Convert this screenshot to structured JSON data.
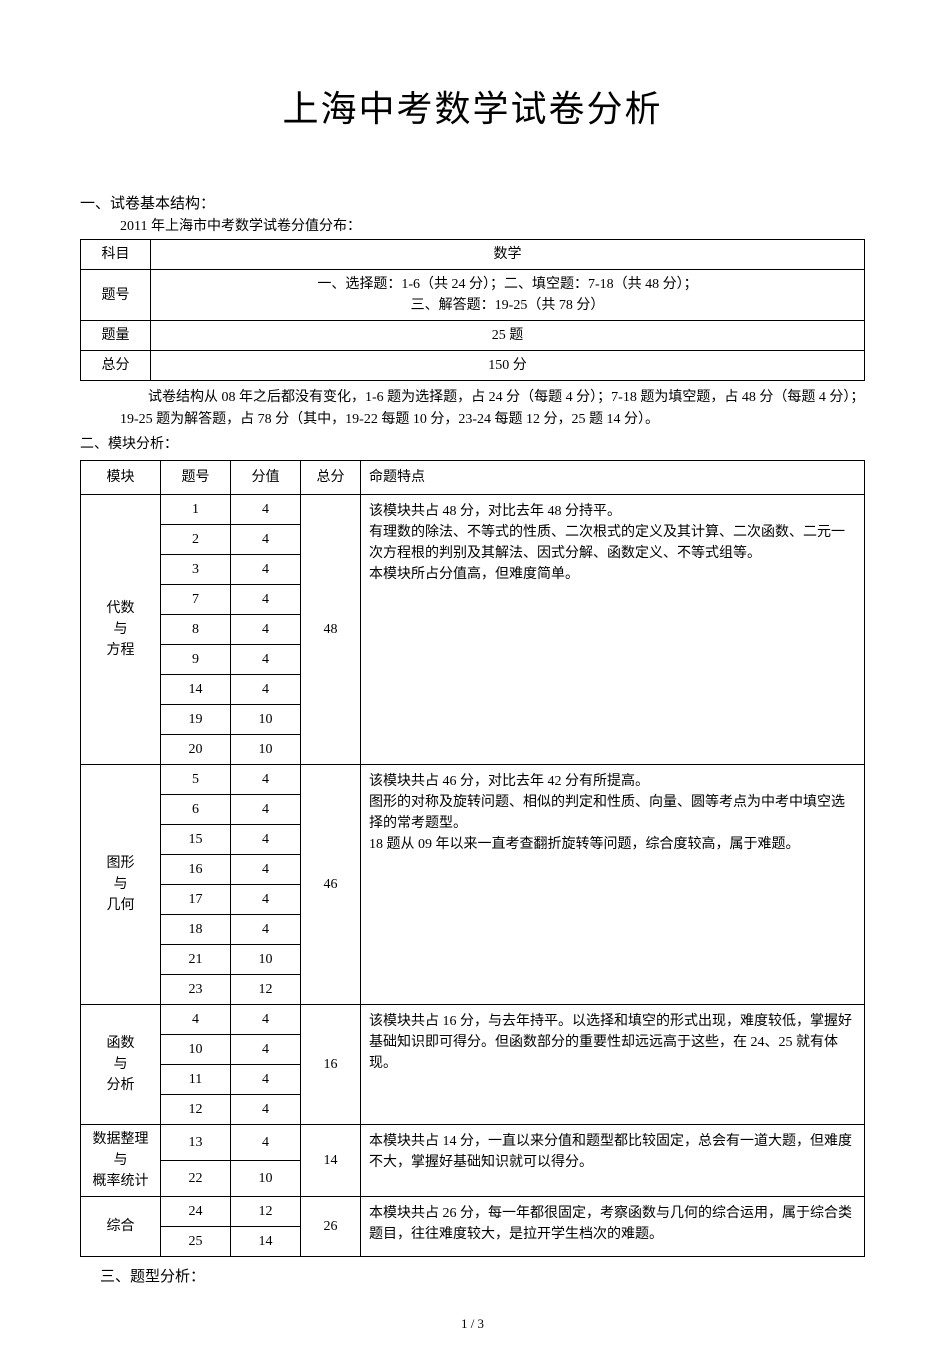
{
  "title": "上海中考数学试卷分析",
  "section1": {
    "heading": "一、试卷基本结构：",
    "subheading": "2011 年上海市中考数学试卷分值分布：",
    "table": {
      "rows": [
        {
          "label": "科目",
          "value": "数学"
        },
        {
          "label": "题号",
          "value": "一、选择题：1-6（共 24 分）；二、填空题：7-18（共 48 分）；\n三、解答题：19-25（共 78 分）"
        },
        {
          "label": "题量",
          "value": "25 题"
        },
        {
          "label": "总分",
          "value": "150 分"
        }
      ]
    },
    "paragraph": "试卷结构从 08 年之后都没有变化，1-6 题为选择题，占 24 分（每题 4 分）；7-18 题为填空题，占 48 分（每题 4 分）；19-25 题为解答题，占 78 分（其中，19-22 每题 10 分，23-24 每题 12 分，25 题 14 分）。"
  },
  "section2": {
    "heading": "二、模块分析：",
    "headers": {
      "module": "模块",
      "qnum": "题号",
      "score": "分值",
      "total": "总分",
      "feature": "命题特点"
    },
    "modules": [
      {
        "name": "代数\n与\n方程",
        "total": "48",
        "feature": "该模块共占 48 分，对比去年 48 分持平。\n有理数的除法、不等式的性质、二次根式的定义及其计算、二次函数、二元一次方程根的判别及其解法、因式分解、函数定义、不等式组等。\n本模块所占分值高，但难度简单。",
        "rows": [
          {
            "q": "1",
            "s": "4"
          },
          {
            "q": "2",
            "s": "4"
          },
          {
            "q": "3",
            "s": "4"
          },
          {
            "q": "7",
            "s": "4"
          },
          {
            "q": "8",
            "s": "4"
          },
          {
            "q": "9",
            "s": "4"
          },
          {
            "q": "14",
            "s": "4"
          },
          {
            "q": "19",
            "s": "10"
          },
          {
            "q": "20",
            "s": "10"
          }
        ]
      },
      {
        "name": "图形\n与\n几何",
        "total": "46",
        "feature": "该模块共占 46 分，对比去年 42 分有所提高。\n图形的对称及旋转问题、相似的判定和性质、向量、圆等考点为中考中填空选择的常考题型。\n18 题从 09 年以来一直考查翻折旋转等问题，综合度较高，属于难题。",
        "rows": [
          {
            "q": "5",
            "s": "4"
          },
          {
            "q": "6",
            "s": "4"
          },
          {
            "q": "15",
            "s": "4"
          },
          {
            "q": "16",
            "s": "4"
          },
          {
            "q": "17",
            "s": "4"
          },
          {
            "q": "18",
            "s": "4"
          },
          {
            "q": "21",
            "s": "10"
          },
          {
            "q": "23",
            "s": "12"
          }
        ]
      },
      {
        "name": "函数\n与\n分析",
        "total": "16",
        "feature": "该模块共占 16 分，与去年持平。以选择和填空的形式出现，难度较低，掌握好基础知识即可得分。但函数部分的重要性却远远高于这些，在 24、25 就有体现。",
        "rows": [
          {
            "q": "4",
            "s": "4"
          },
          {
            "q": "10",
            "s": "4"
          },
          {
            "q": "11",
            "s": "4"
          },
          {
            "q": "12",
            "s": "4"
          }
        ]
      },
      {
        "name": "数据整理\n与\n概率统计",
        "total": "14",
        "feature": "本模块共占 14 分，一直以来分值和题型都比较固定，总会有一道大题，但难度不大，掌握好基础知识就可以得分。",
        "rows": [
          {
            "q": "13",
            "s": "4"
          },
          {
            "q": "22",
            "s": "10"
          }
        ]
      },
      {
        "name": "综合",
        "total": "26",
        "feature": "本模块共占 26 分，每一年都很固定，考察函数与几何的综合运用，属于综合类题目，往往难度较大，是拉开学生档次的难题。",
        "rows": [
          {
            "q": "24",
            "s": "12"
          },
          {
            "q": "25",
            "s": "14"
          }
        ]
      }
    ]
  },
  "section3": {
    "heading": "三、题型分析："
  },
  "page": "1 / 3"
}
